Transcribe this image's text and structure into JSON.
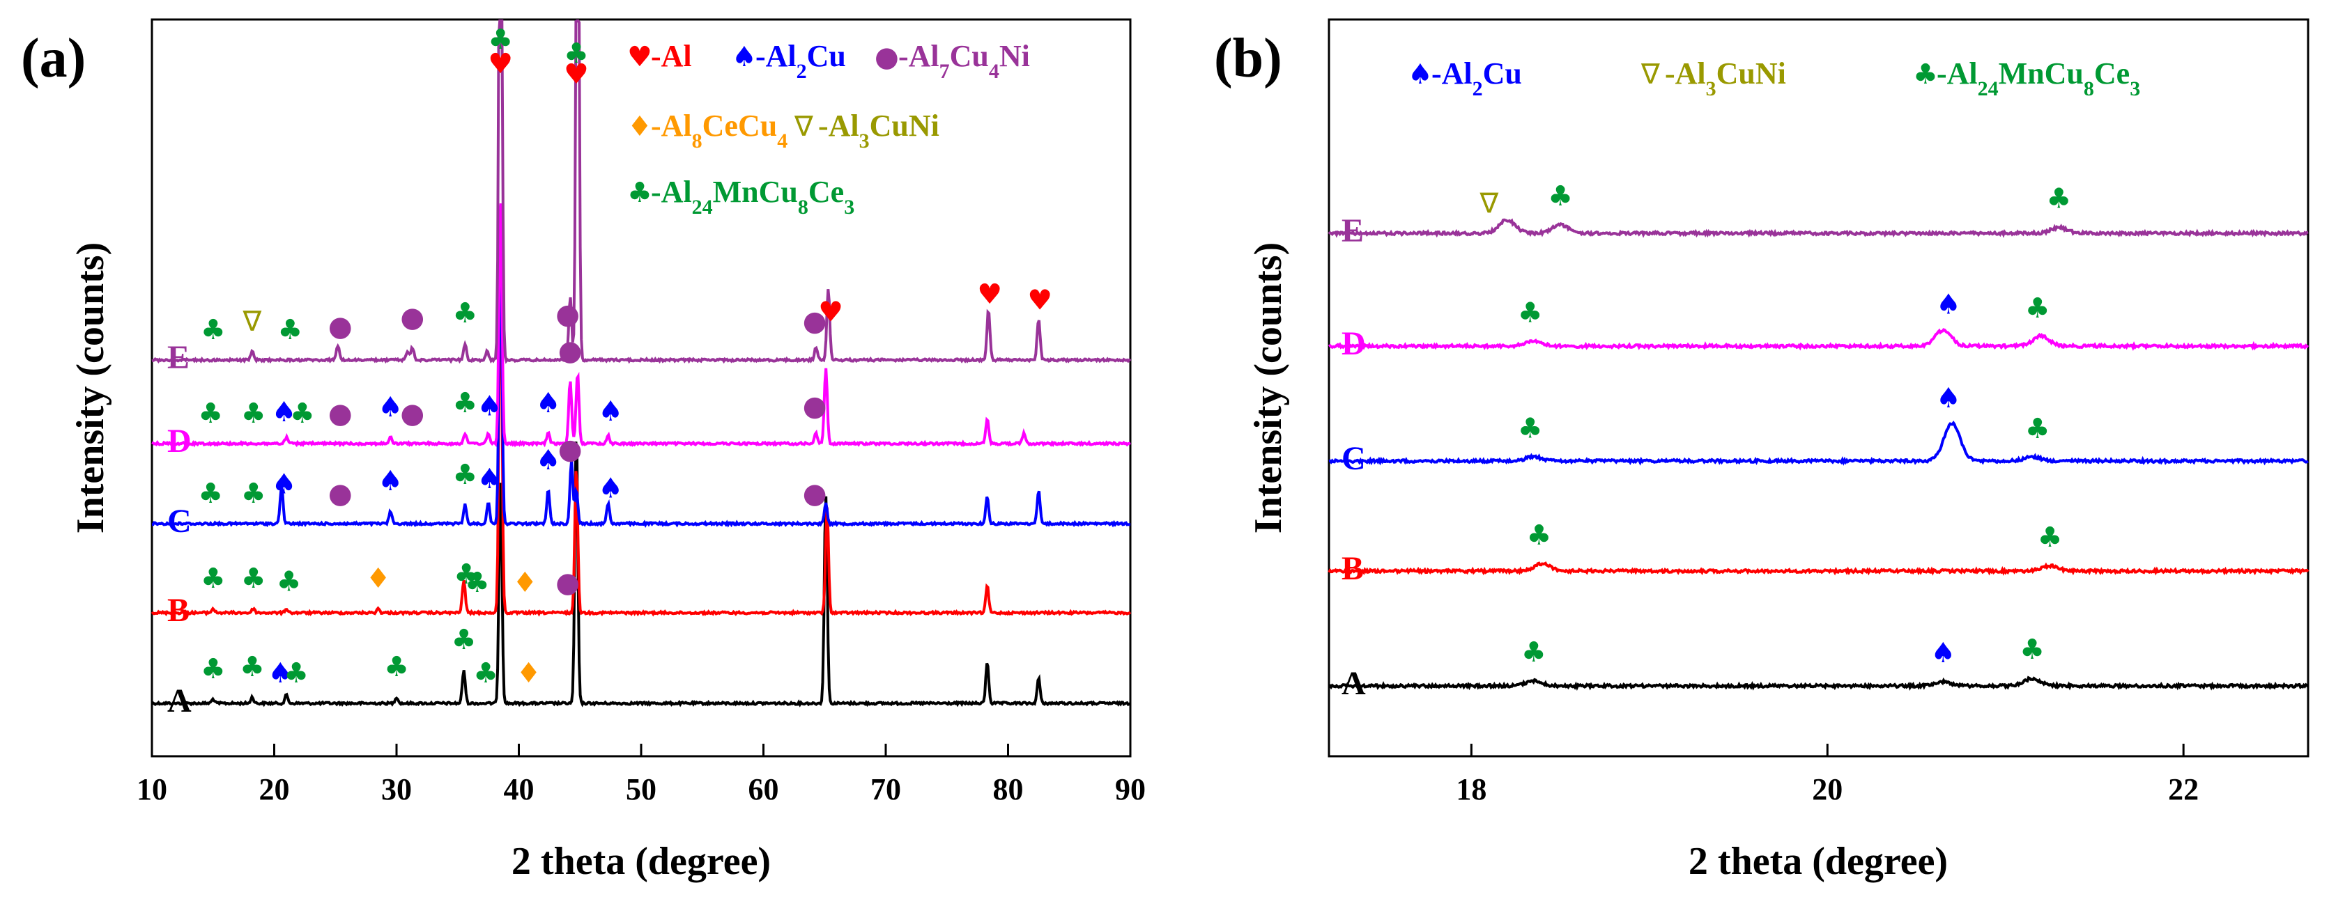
{
  "chart_data": [
    {
      "panel": "(a)",
      "type": "line",
      "xlabel": "2 theta (degree)",
      "ylabel": "Intensity (counts)",
      "xlim": [
        10,
        90
      ],
      "xticks": [
        10,
        20,
        30,
        40,
        50,
        60,
        70,
        80,
        90
      ],
      "xtick_labels": [
        "10",
        "20",
        "30",
        "40",
        "50",
        "60",
        "70",
        "80",
        "90"
      ],
      "legend": [
        {
          "symbol": "♥",
          "color": "#ff0000",
          "text": "-Al",
          "sub": []
        },
        {
          "symbol": "♠",
          "color": "#0000ff",
          "text": "-Al2Cu",
          "sub": [
            [
              "-Al",
              false
            ],
            [
              "2",
              true
            ],
            [
              "Cu",
              false
            ]
          ]
        },
        {
          "symbol": "●",
          "color": "#993399",
          "text": "-Al7Cu4Ni",
          "sub": [
            [
              "-Al",
              false
            ],
            [
              "7",
              true
            ],
            [
              "Cu",
              false
            ],
            [
              "4",
              true
            ],
            [
              "Ni",
              false
            ]
          ]
        },
        {
          "symbol": "♦",
          "color": "#ff9900",
          "text": "-Al8CeCu4",
          "sub": [
            [
              "-Al",
              false
            ],
            [
              "8",
              true
            ],
            [
              "CeCu",
              false
            ],
            [
              "4",
              true
            ]
          ]
        },
        {
          "symbol": "∇",
          "color": "#999900",
          "text": "-Al3CuNi",
          "sub": [
            [
              "-Al",
              false
            ],
            [
              "3",
              true
            ],
            [
              "CuNi",
              false
            ]
          ]
        },
        {
          "symbol": "♣",
          "color": "#009933",
          "text": "-Al24MnCu8Ce3",
          "sub": [
            [
              "-Al",
              false
            ],
            [
              "24",
              true
            ],
            [
              "MnCu",
              false
            ],
            [
              "8",
              true
            ],
            [
              "Ce",
              false
            ],
            [
              "3",
              true
            ]
          ]
        }
      ],
      "series": [
        {
          "name": "A",
          "color": "#000000",
          "offset": 0,
          "peaks": [
            [
              15,
              0.2
            ],
            [
              18.2,
              0.3
            ],
            [
              21,
              0.4
            ],
            [
              30,
              0.3
            ],
            [
              35.5,
              1.6
            ],
            [
              38.5,
              11
            ],
            [
              44.7,
              13
            ],
            [
              65.1,
              10
            ],
            [
              78.3,
              2.0
            ],
            [
              82.5,
              1.2
            ]
          ],
          "markers": [
            [
              15,
              "♣",
              "#009933"
            ],
            [
              18.2,
              "♣",
              "#009933"
            ],
            [
              20.5,
              "♠",
              "#0000ff"
            ],
            [
              21.8,
              "♣",
              "#009933"
            ],
            [
              30,
              "♣",
              "#009933"
            ],
            [
              35.5,
              "♣",
              "#009933"
            ],
            [
              37.3,
              "♣",
              "#009933"
            ],
            [
              40.8,
              "♦",
              "#ff9900"
            ]
          ]
        },
        {
          "name": "B",
          "color": "#ff0000",
          "offset": 1,
          "peaks": [
            [
              15,
              0.2
            ],
            [
              18.3,
              0.2
            ],
            [
              21,
              0.2
            ],
            [
              28.5,
              0.2
            ],
            [
              35.5,
              1.6
            ],
            [
              38.5,
              18
            ],
            [
              44.7,
              7
            ],
            [
              65.2,
              5
            ],
            [
              78.3,
              1.3
            ]
          ],
          "markers": [
            [
              15,
              "♣",
              "#009933"
            ],
            [
              18.3,
              "♣",
              "#009933"
            ],
            [
              21.2,
              "♣",
              "#009933"
            ],
            [
              28.5,
              "♦",
              "#ff9900"
            ],
            [
              35.7,
              "♣",
              "#009933"
            ],
            [
              36.6,
              "♣",
              "#009933"
            ],
            [
              40.5,
              "♦",
              "#ff9900"
            ],
            [
              44,
              "●",
              "#993399"
            ]
          ]
        },
        {
          "name": "C",
          "color": "#0000ff",
          "offset": 2,
          "peaks": [
            [
              20.6,
              1.8
            ],
            [
              29.5,
              0.6
            ],
            [
              35.6,
              0.9
            ],
            [
              37.5,
              1.0
            ],
            [
              38.5,
              14
            ],
            [
              42.4,
              1.6
            ],
            [
              44.3,
              3.0
            ],
            [
              44.7,
              1.6
            ],
            [
              47.3,
              1.0
            ],
            [
              65.1,
              1.0
            ],
            [
              78.3,
              1.3
            ],
            [
              82.5,
              1.6
            ]
          ],
          "markers": [
            [
              14.8,
              "♣",
              "#009933"
            ],
            [
              18.3,
              "♣",
              "#009933"
            ],
            [
              20.8,
              "♠",
              "#0000ff"
            ],
            [
              25.4,
              "●",
              "#993399"
            ],
            [
              29.5,
              "♠",
              "#0000ff"
            ],
            [
              35.6,
              "♣",
              "#009933"
            ],
            [
              37.6,
              "♠",
              "#0000ff"
            ],
            [
              42.4,
              "♠",
              "#0000ff"
            ],
            [
              44.2,
              "●",
              "#993399"
            ],
            [
              47.5,
              "♠",
              "#0000ff"
            ],
            [
              64.2,
              "●",
              "#993399"
            ]
          ]
        },
        {
          "name": "D",
          "color": "#ff00ff",
          "offset": 3,
          "peaks": [
            [
              21,
              0.3
            ],
            [
              29.5,
              0.3
            ],
            [
              35.6,
              0.5
            ],
            [
              37.5,
              0.5
            ],
            [
              38.5,
              12
            ],
            [
              42.4,
              0.5
            ],
            [
              44.2,
              3.0
            ],
            [
              44.8,
              3.4
            ],
            [
              47.3,
              0.4
            ],
            [
              64.3,
              0.5
            ],
            [
              65.1,
              3.6
            ],
            [
              78.3,
              1.2
            ],
            [
              81.3,
              0.5
            ]
          ],
          "markers": [
            [
              14.8,
              "♣",
              "#009933"
            ],
            [
              18.3,
              "♣",
              "#009933"
            ],
            [
              20.8,
              "♠",
              "#0000ff"
            ],
            [
              22.3,
              "♣",
              "#009933"
            ],
            [
              25.4,
              "●",
              "#993399"
            ],
            [
              29.5,
              "♠",
              "#0000ff"
            ],
            [
              31.3,
              "●",
              "#993399"
            ],
            [
              35.6,
              "♣",
              "#009933"
            ],
            [
              37.6,
              "♠",
              "#0000ff"
            ],
            [
              42.4,
              "♠",
              "#0000ff"
            ],
            [
              44.2,
              "●",
              "#993399"
            ],
            [
              47.5,
              "♠",
              "#0000ff"
            ],
            [
              64.2,
              "●",
              "#993399"
            ]
          ]
        },
        {
          "name": "E",
          "color": "#993399",
          "offset": 4,
          "peaks": [
            [
              18.2,
              0.4
            ],
            [
              25.2,
              0.7
            ],
            [
              30.9,
              0.4
            ],
            [
              31.3,
              0.6
            ],
            [
              35.6,
              0.8
            ],
            [
              37.4,
              0.4
            ],
            [
              38.5,
              32
            ],
            [
              44.2,
              3.0
            ],
            [
              44.8,
              30
            ],
            [
              64.3,
              0.6
            ],
            [
              65.3,
              3.4
            ],
            [
              78.4,
              2.4
            ],
            [
              82.5,
              2.0
            ]
          ],
          "markers": [
            [
              15,
              "♣",
              "#009933"
            ],
            [
              18.2,
              "∇",
              "#999900"
            ],
            [
              21.3,
              "♣",
              "#009933"
            ],
            [
              25.4,
              "●",
              "#993399"
            ],
            [
              31.3,
              "●",
              "#993399"
            ],
            [
              35.6,
              "♣",
              "#009933"
            ],
            [
              44.0,
              "●",
              "#993399"
            ],
            [
              64.2,
              "●",
              "#993399"
            ],
            [
              65.5,
              "♥",
              "#ff0000"
            ],
            [
              78.5,
              "♥",
              "#ff0000"
            ],
            [
              82.6,
              "♥",
              "#ff0000"
            ]
          ]
        }
      ],
      "top_markers": [
        [
          38.5,
          "♣",
          "#009933"
        ],
        [
          38.5,
          "♥",
          "#ff0000"
        ],
        [
          44.7,
          "♣",
          "#009933"
        ],
        [
          44.7,
          "♥",
          "#ff0000"
        ]
      ]
    },
    {
      "panel": "(b)",
      "type": "line",
      "xlabel": "2 theta (degree)",
      "ylabel": "Intensity (counts)",
      "xlim": [
        17.2,
        22.7
      ],
      "xticks": [
        18,
        20,
        22
      ],
      "xtick_labels": [
        "18",
        "20",
        "22"
      ],
      "legend": [
        {
          "symbol": "♠",
          "color": "#0000ff",
          "text": "-Al2Cu",
          "sub": [
            [
              "-Al",
              false
            ],
            [
              "2",
              true
            ],
            [
              "Cu",
              false
            ]
          ]
        },
        {
          "symbol": "∇",
          "color": "#999900",
          "text": "-Al3CuNi",
          "sub": [
            [
              "-Al",
              false
            ],
            [
              "3",
              true
            ],
            [
              "CuNi",
              false
            ]
          ]
        },
        {
          "symbol": "♣",
          "color": "#009933",
          "text": "-Al24MnCu8Ce3",
          "sub": [
            [
              "-Al",
              false
            ],
            [
              "24",
              true
            ],
            [
              "MnCu",
              false
            ],
            [
              "8",
              true
            ],
            [
              "Ce",
              false
            ],
            [
              "3",
              true
            ]
          ]
        }
      ],
      "series": [
        {
          "name": "A",
          "color": "#000000",
          "offset": 0,
          "peaks": [
            [
              18.35,
              0.6
            ],
            [
              20.65,
              0.5
            ],
            [
              21.15,
              0.9
            ]
          ],
          "markers": [
            [
              18.35,
              "♣",
              "#009933"
            ],
            [
              20.65,
              "♠",
              "#0000ff"
            ],
            [
              21.15,
              "♣",
              "#009933"
            ]
          ]
        },
        {
          "name": "B",
          "color": "#ff0000",
          "offset": 1,
          "peaks": [
            [
              18.4,
              0.9
            ],
            [
              21.25,
              0.6
            ]
          ],
          "markers": [
            [
              18.38,
              "♣",
              "#009933"
            ],
            [
              21.25,
              "♣",
              "#009933"
            ]
          ]
        },
        {
          "name": "C",
          "color": "#0000ff",
          "offset": 2,
          "peaks": [
            [
              18.35,
              0.5
            ],
            [
              20.7,
              4.5
            ],
            [
              21.15,
              0.5
            ]
          ],
          "markers": [
            [
              18.33,
              "♣",
              "#009933"
            ],
            [
              20.68,
              "♠",
              "#0000ff"
            ],
            [
              21.18,
              "♣",
              "#009933"
            ]
          ]
        },
        {
          "name": "D",
          "color": "#ff00ff",
          "offset": 3,
          "peaks": [
            [
              18.35,
              0.6
            ],
            [
              20.65,
              1.9
            ],
            [
              21.2,
              1.2
            ]
          ],
          "markers": [
            [
              18.33,
              "♣",
              "#009933"
            ],
            [
              20.68,
              "♠",
              "#0000ff"
            ],
            [
              21.18,
              "♣",
              "#009933"
            ]
          ]
        },
        {
          "name": "E",
          "color": "#993399",
          "offset": 4,
          "peaks": [
            [
              18.2,
              1.6
            ],
            [
              18.5,
              1.0
            ],
            [
              21.3,
              0.7
            ]
          ],
          "markers": [
            [
              18.1,
              "∇",
              "#999900"
            ],
            [
              18.5,
              "♣",
              "#009933"
            ],
            [
              21.3,
              "♣",
              "#009933"
            ]
          ]
        }
      ]
    }
  ]
}
